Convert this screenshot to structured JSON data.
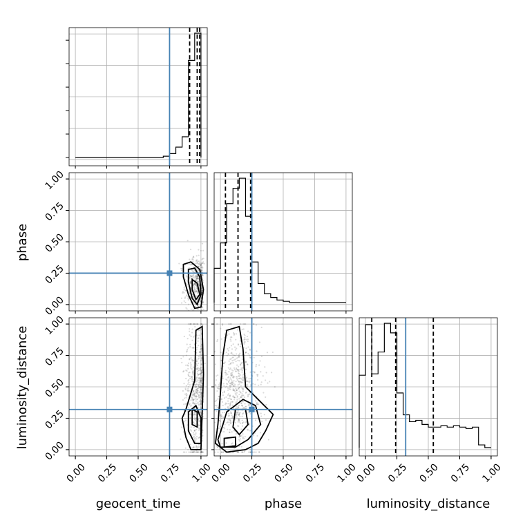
{
  "chart_data": {
    "type": "corner",
    "parameters": [
      "geocent_time",
      "phase",
      "luminosity_distance"
    ],
    "tick_values": [
      0.0,
      0.25,
      0.5,
      0.75,
      1.0
    ],
    "tick_labels": [
      "0.00",
      "0.25",
      "0.50",
      "0.75",
      "1.00"
    ],
    "axis_range": [
      -0.05,
      1.05
    ],
    "grid": true,
    "colors": {
      "truth": "#4682b4",
      "line": "#000000",
      "scatter": "#555555"
    },
    "truths": {
      "geocent_time": 0.75,
      "phase": 0.25,
      "luminosity_distance": 0.32
    },
    "quantiles": {
      "geocent_time": [
        0.91,
        0.97,
        0.99
      ],
      "phase": [
        0.04,
        0.14,
        0.24
      ],
      "luminosity_distance": [
        0.05,
        0.24,
        0.54
      ]
    },
    "histograms": {
      "geocent_time": {
        "edges": [
          0.0,
          0.05,
          0.1,
          0.15,
          0.2,
          0.25,
          0.3,
          0.35,
          0.4,
          0.45,
          0.5,
          0.55,
          0.6,
          0.65,
          0.7,
          0.75,
          0.8,
          0.85,
          0.9,
          0.95,
          1.0
        ],
        "counts": [
          0,
          0,
          0,
          0,
          0,
          0,
          0,
          0,
          0,
          0,
          0,
          0,
          0,
          0,
          1,
          3,
          8,
          16,
          75,
          96
        ]
      },
      "phase": {
        "edges": [
          -0.05,
          0.0,
          0.05,
          0.1,
          0.15,
          0.2,
          0.25,
          0.3,
          0.35,
          0.4,
          0.45,
          0.5,
          0.55,
          0.6,
          0.65,
          0.7,
          0.75,
          0.8,
          0.85,
          0.9,
          0.95,
          1.0
        ],
        "counts": [
          27,
          47,
          78,
          90,
          98,
          68,
          32,
          15,
          7,
          4,
          2,
          1,
          0,
          0,
          0,
          0,
          0,
          0,
          0,
          0,
          0
        ]
      },
      "luminosity_distance": {
        "edges": [
          -0.05,
          0.0,
          0.05,
          0.1,
          0.15,
          0.2,
          0.25,
          0.3,
          0.35,
          0.4,
          0.45,
          0.5,
          0.55,
          0.6,
          0.65,
          0.7,
          0.75,
          0.8,
          0.85,
          0.9,
          0.95,
          1.0
        ],
        "counts": [
          53,
          90,
          54,
          70,
          91,
          84,
          40,
          24,
          19,
          20,
          17,
          15,
          15,
          16,
          15,
          16,
          15,
          14,
          15,
          2,
          0
        ]
      }
    },
    "panels_2d": [
      {
        "x": "geocent_time",
        "y": "phase",
        "center": [
          0.97,
          0.15
        ],
        "spread": [
          0.05,
          0.12
        ],
        "n_points": 550,
        "contours": [
          [
            [
              0.86,
              0.32
            ],
            [
              0.92,
              0.34
            ],
            [
              0.99,
              0.28
            ],
            [
              1.02,
              0.12
            ],
            [
              1.0,
              -0.02
            ],
            [
              0.95,
              -0.03
            ],
            [
              0.9,
              0.08
            ],
            [
              0.86,
              0.22
            ]
          ],
          [
            [
              0.9,
              0.28
            ],
            [
              0.95,
              0.29
            ],
            [
              0.99,
              0.22
            ],
            [
              1.0,
              0.08
            ],
            [
              0.97,
              0.0
            ],
            [
              0.93,
              0.05
            ],
            [
              0.9,
              0.18
            ]
          ],
          [
            [
              0.93,
              0.2
            ],
            [
              0.97,
              0.17
            ],
            [
              0.99,
              0.08
            ],
            [
              0.96,
              0.04
            ],
            [
              0.93,
              0.12
            ]
          ]
        ]
      },
      {
        "x": "geocent_time",
        "y": "luminosity_distance",
        "center": [
          0.97,
          0.45
        ],
        "spread": [
          0.05,
          0.28
        ],
        "n_points": 650,
        "contours": [
          [
            [
              0.88,
              0.32
            ],
            [
              0.95,
              0.55
            ],
            [
              0.96,
              0.95
            ],
            [
              1.01,
              0.98
            ],
            [
              1.02,
              0.6
            ],
            [
              1.01,
              0.3
            ],
            [
              1.0,
              0.0
            ],
            [
              0.92,
              0.0
            ],
            [
              0.88,
              0.1
            ],
            [
              0.85,
              0.25
            ]
          ],
          [
            [
              0.9,
              0.3
            ],
            [
              0.96,
              0.35
            ],
            [
              1.0,
              0.25
            ],
            [
              1.0,
              0.05
            ],
            [
              0.95,
              0.05
            ],
            [
              0.9,
              0.15
            ]
          ],
          [
            [
              0.93,
              0.32
            ],
            [
              0.97,
              0.3
            ],
            [
              0.97,
              0.18
            ],
            [
              0.93,
              0.2
            ]
          ]
        ]
      },
      {
        "x": "phase",
        "y": "luminosity_distance",
        "center": [
          0.13,
          0.45
        ],
        "spread": [
          0.1,
          0.28
        ],
        "n_points": 750,
        "contours": [
          [
            [
              0.05,
              0.95
            ],
            [
              0.15,
              0.98
            ],
            [
              0.18,
              0.8
            ],
            [
              0.2,
              0.5
            ],
            [
              0.3,
              0.4
            ],
            [
              0.42,
              0.28
            ],
            [
              0.36,
              0.15
            ],
            [
              0.3,
              0.05
            ],
            [
              0.2,
              0.0
            ],
            [
              0.05,
              -0.02
            ],
            [
              -0.04,
              0.05
            ],
            [
              -0.02,
              0.2
            ],
            [
              0.0,
              0.45
            ],
            [
              0.02,
              0.75
            ]
          ],
          [
            [
              0.05,
              0.3
            ],
            [
              0.18,
              0.4
            ],
            [
              0.28,
              0.35
            ],
            [
              0.32,
              0.2
            ],
            [
              0.22,
              0.08
            ],
            [
              0.12,
              0.02
            ],
            [
              0.0,
              0.02
            ],
            [
              -0.02,
              0.08
            ],
            [
              0.02,
              0.2
            ]
          ],
          [
            [
              0.12,
              0.32
            ],
            [
              0.2,
              0.32
            ],
            [
              0.22,
              0.2
            ],
            [
              0.15,
              0.12
            ],
            [
              0.1,
              0.18
            ]
          ],
          [
            [
              0.03,
              0.09
            ],
            [
              0.12,
              0.1
            ],
            [
              0.12,
              0.03
            ],
            [
              0.03,
              0.02
            ]
          ]
        ]
      }
    ]
  }
}
